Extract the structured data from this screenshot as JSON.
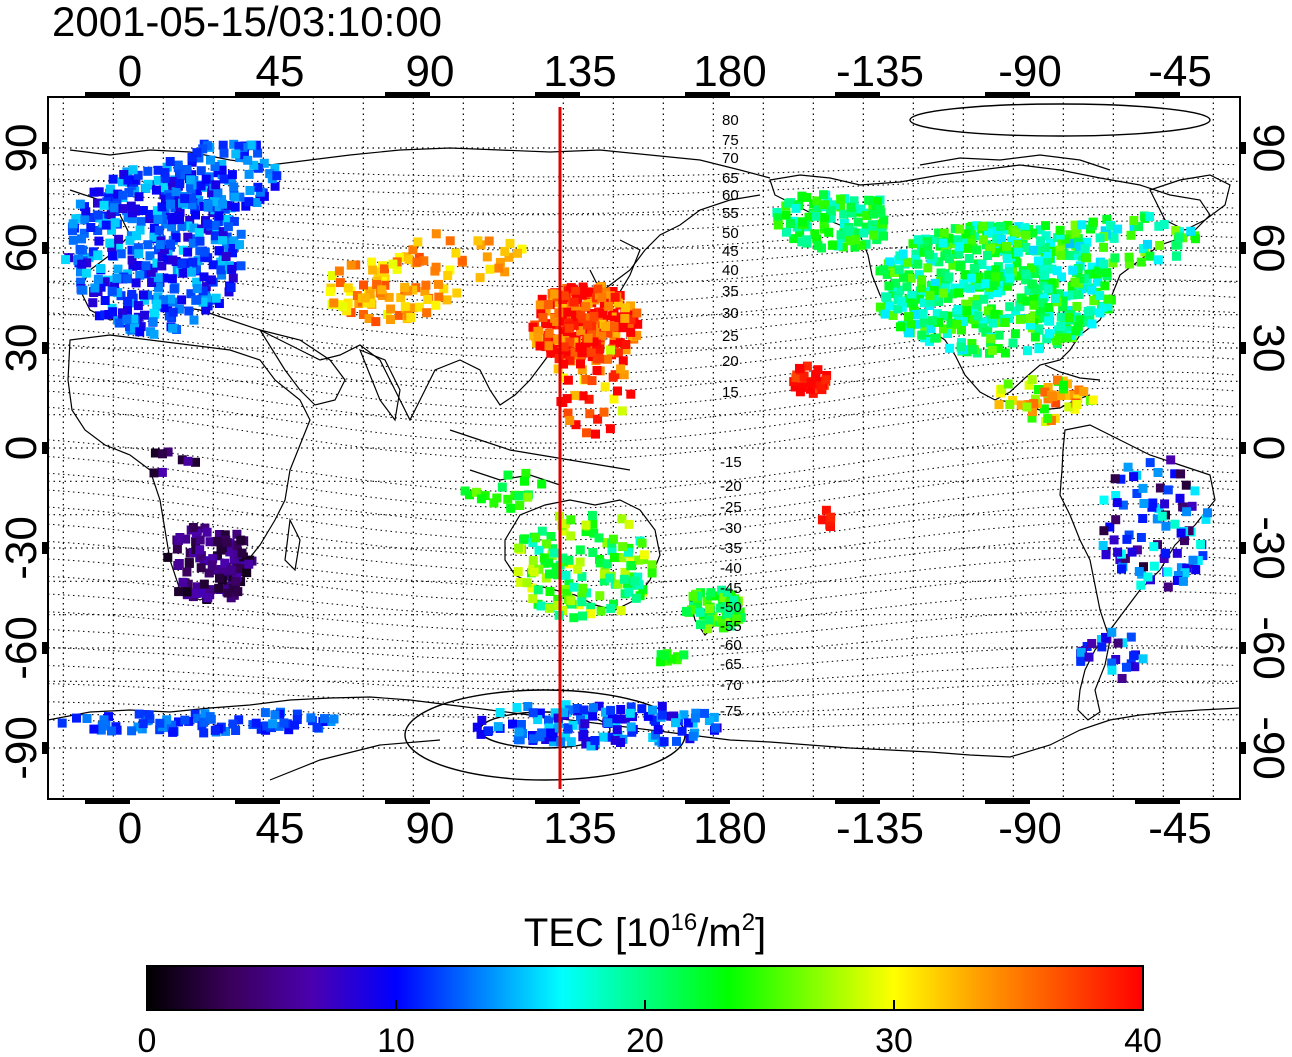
{
  "title": "2001-05-15/03:10:00",
  "longitude_labels": [
    "0",
    "45",
    "90",
    "135",
    "180",
    "-135",
    "-90",
    "-45"
  ],
  "latitude_labels": [
    "90",
    "60",
    "30",
    "0",
    "-30",
    "-60",
    "-90"
  ],
  "contour_labels": {
    "north": [
      "80",
      "75",
      "70",
      "65",
      "60",
      "55",
      "50",
      "45",
      "40",
      "35",
      "30",
      "25",
      "20",
      "15"
    ],
    "south": [
      "-15",
      "-20",
      "-25",
      "-30",
      "-35",
      "-40",
      "-45",
      "-50",
      "-55",
      "-60",
      "-65",
      "-70",
      "-75"
    ]
  },
  "colorbar": {
    "title": "TEC  [10",
    "title_sup1": "16",
    "title_mid": "/m",
    "title_sup2": "2",
    "title_end": "]",
    "ticks": [
      "0",
      "10",
      "20",
      "30",
      "40"
    ],
    "range": [
      0,
      40
    ],
    "colors": [
      "#000000",
      "#3a005a",
      "#4b00b0",
      "#0000ff",
      "#0080ff",
      "#00ffff",
      "#00ff80",
      "#00ff00",
      "#80ff00",
      "#ffff00",
      "#ffa000",
      "#ff5000",
      "#ff0000"
    ]
  },
  "marker_longitude": 135,
  "marker_color": "#e00000",
  "tec_regions": [
    {
      "name": "europe",
      "tec": 12
    },
    {
      "name": "north-america",
      "tec": 21
    },
    {
      "name": "japan-china",
      "tec": 38
    },
    {
      "name": "caribbean",
      "tec": 30
    },
    {
      "name": "south-america",
      "tec": 10
    },
    {
      "name": "southern-africa",
      "tec": 4
    },
    {
      "name": "australia",
      "tec": 24
    },
    {
      "name": "new-zealand",
      "tec": 23
    },
    {
      "name": "antarctica",
      "tec": 12
    },
    {
      "name": "hawaii",
      "tec": 39
    },
    {
      "name": "india-central-asia",
      "tec": 33
    }
  ]
}
